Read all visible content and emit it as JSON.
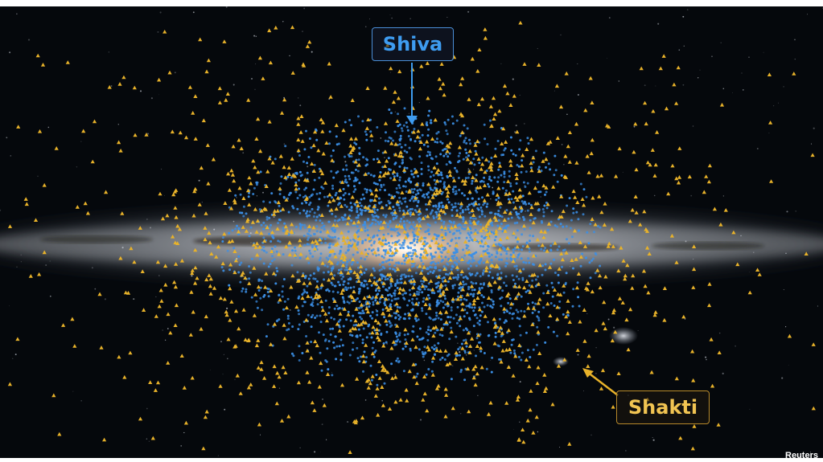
{
  "image": {
    "labels": {
      "shiva": "Shiva",
      "shakti": "Shakti"
    },
    "credit": "Reuters",
    "colors": {
      "background": "#05080c",
      "milky_way_band": "#c9ccd2",
      "galactic_core": "#ffe2bf",
      "shiva_points": "#3b8fe6",
      "shakti_points": "#e8b22a",
      "shiva_label": "#3e9cf0",
      "shakti_label": "#f1c452"
    },
    "legend_items": [
      "blue-dot-stars",
      "yellow-triangle-stars"
    ]
  }
}
